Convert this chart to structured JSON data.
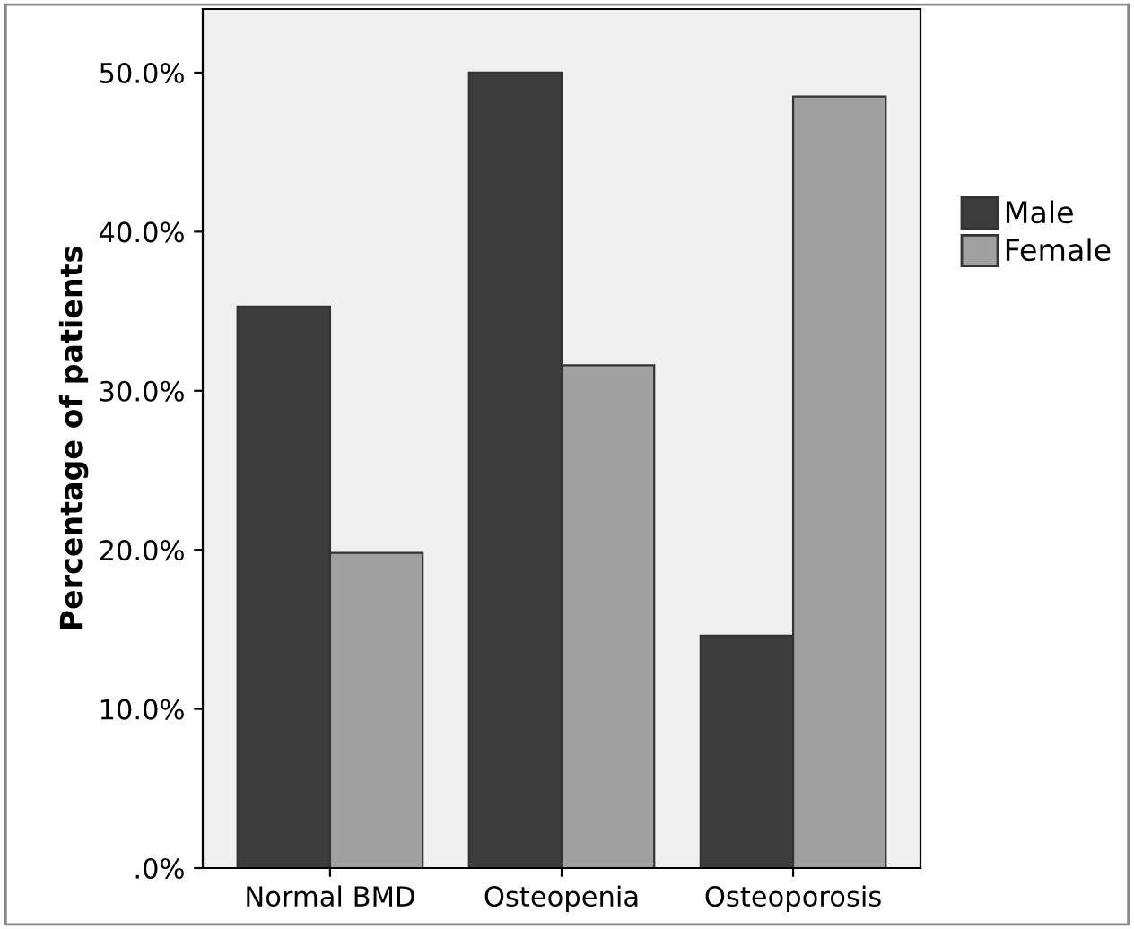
{
  "chart_data": {
    "type": "bar",
    "ylabel": "Percentage of patients",
    "categories": [
      "Normal BMD",
      "Osteopenia",
      "Osteoporosis"
    ],
    "series": [
      {
        "name": "Male",
        "color": "#3d3d3d",
        "values": [
          35.3,
          50.0,
          14.6
        ]
      },
      {
        "name": "Female",
        "color": "#a0a0a0",
        "values": [
          19.8,
          31.6,
          48.5
        ]
      }
    ],
    "ylim": [
      0,
      54
    ],
    "yticks": [
      {
        "value": 0,
        "label": ".0%"
      },
      {
        "value": 10,
        "label": "10.0%"
      },
      {
        "value": 20,
        "label": "20.0%"
      },
      {
        "value": 30,
        "label": "30.0%"
      },
      {
        "value": 40,
        "label": "40.0%"
      },
      {
        "value": 50,
        "label": "50.0%"
      }
    ],
    "grid": false,
    "legend": "right"
  }
}
